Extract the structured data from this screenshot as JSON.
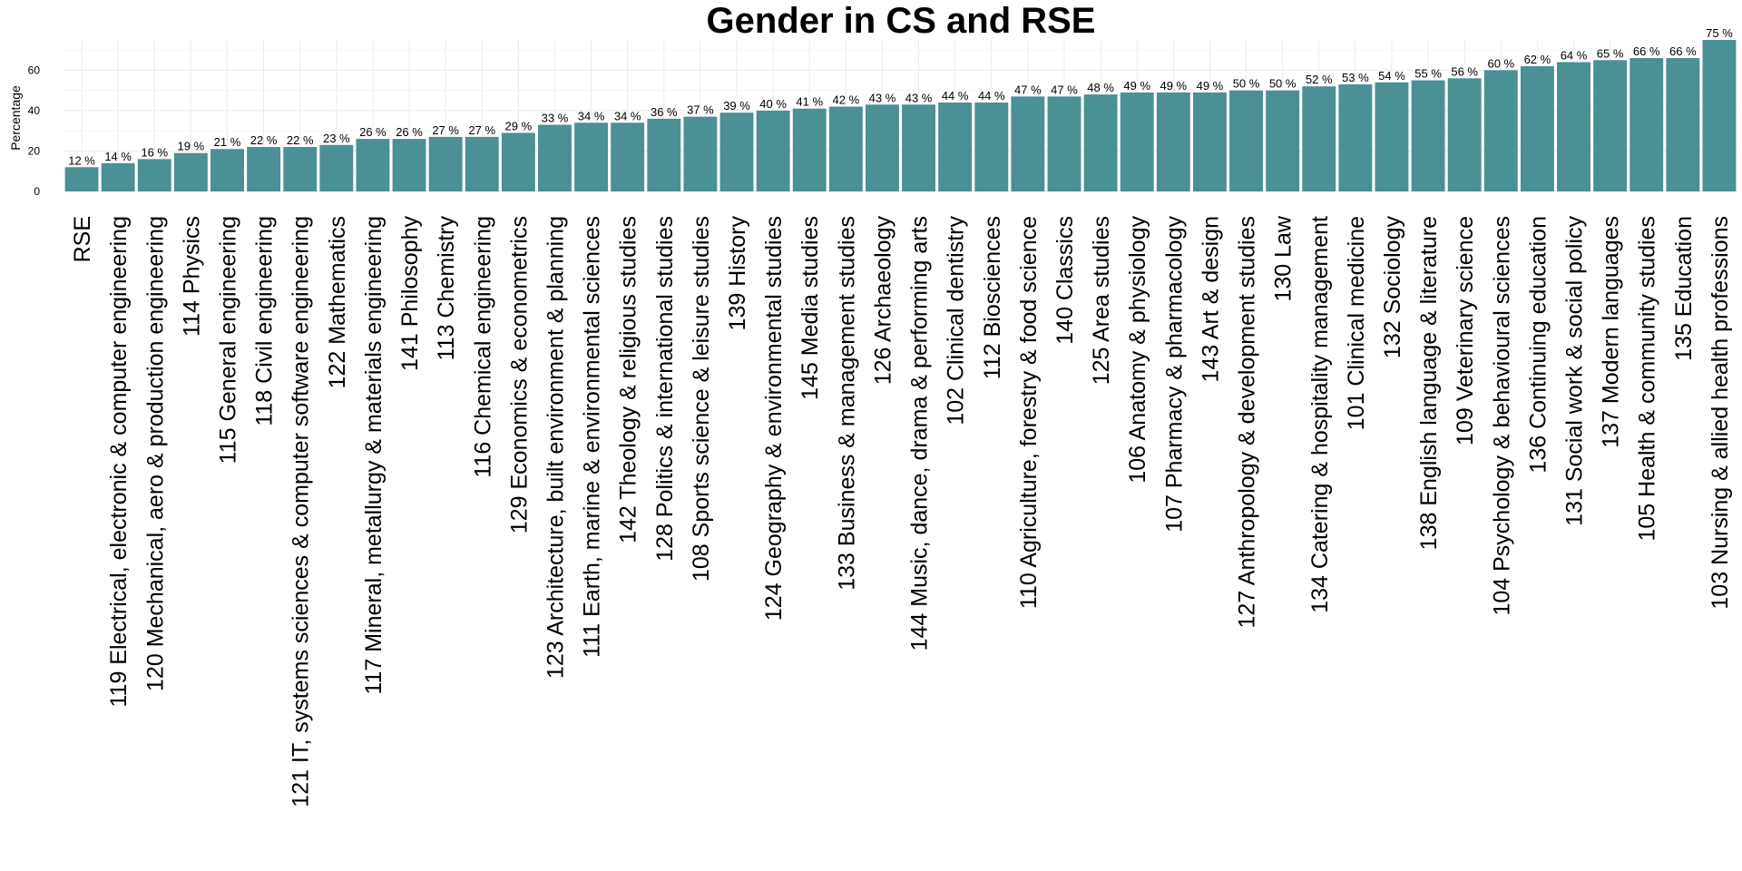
{
  "chart_data": {
    "type": "bar",
    "title": "Gender in CS and RSE",
    "xlabel": "",
    "ylabel": "Percentage",
    "ylim": [
      0,
      75
    ],
    "yticks": [
      0,
      20,
      40,
      60
    ],
    "grid": true,
    "bar_color": "#4a9094",
    "unit_suffix": " %",
    "categories": [
      "RSE",
      "119 Electrical, electronic & computer engineering",
      "120 Mechanical, aero & production engineering",
      "114 Physics",
      "115 General engineering",
      "118 Civil engineering",
      "121 IT, systems sciences & computer software engineering",
      "122 Mathematics",
      "117 Mineral, metallurgy & materials engineering",
      "141 Philosophy",
      "113 Chemistry",
      "116 Chemical engineering",
      "129 Economics & econometrics",
      "123 Architecture, built environment & planning",
      "111 Earth, marine & environmental sciences",
      "142 Theology & religious studies",
      "128 Politics & international studies",
      "108 Sports science & leisure studies",
      "139 History",
      "124 Geography & environmental studies",
      "145 Media studies",
      "133 Business & management studies",
      "126 Archaeology",
      "144 Music, dance, drama & performing arts",
      "102 Clinical dentistry",
      "112 Biosciences",
      "110 Agriculture, forestry & food science",
      "140 Classics",
      "125 Area studies",
      "106 Anatomy & physiology",
      "107 Pharmacy & pharmacology",
      "143 Art & design",
      "127 Anthropology & development studies",
      "130 Law",
      "134 Catering & hospitality management",
      "101 Clinical medicine",
      "132 Sociology",
      "138 English language & literature",
      "109 Veterinary science",
      "104 Psychology & behavioural sciences",
      "136 Continuing education",
      "131 Social work & social policy",
      "137 Modern languages",
      "105 Health & community studies",
      "135 Education",
      "103 Nursing & allied health professions"
    ],
    "values": [
      12,
      14,
      16,
      19,
      21,
      22,
      22,
      23,
      26,
      26,
      27,
      27,
      29,
      33,
      34,
      34,
      36,
      37,
      39,
      40,
      41,
      42,
      43,
      43,
      44,
      44,
      47,
      47,
      48,
      49,
      49,
      49,
      50,
      50,
      52,
      53,
      54,
      55,
      56,
      60,
      62,
      64,
      65,
      66,
      66,
      75
    ]
  }
}
